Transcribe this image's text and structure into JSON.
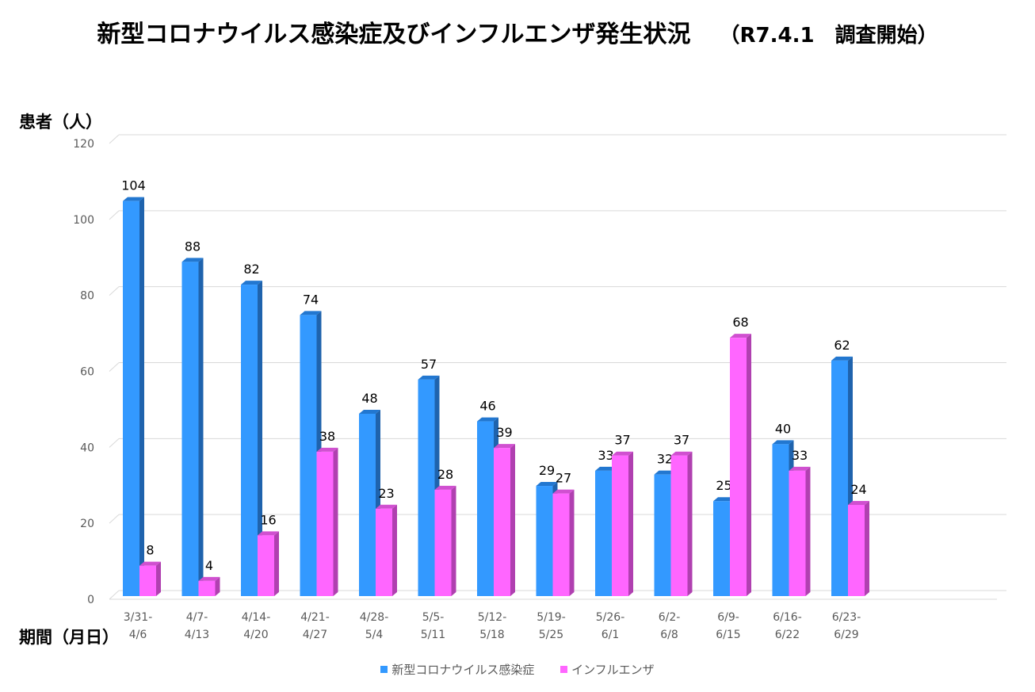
{
  "title": {
    "main": "新型コロナウイルス感染症及びインフルエンザ発生状況",
    "note": "（R7.4.1　調査開始）"
  },
  "axis": {
    "ylabel": "患者（人）",
    "xlabel": "期間（月日）"
  },
  "colors": {
    "covid": "#3399FF",
    "covid_side": "#1F63AD",
    "covid_top": "#2277D0",
    "flu": "#FF66FF",
    "flu_side": "#B040B0",
    "flu_top": "#D050D0",
    "grid": "#D9D9D9"
  },
  "chart_data": {
    "type": "bar",
    "title": "新型コロナウイルス感染症及びインフルエンザ発生状況",
    "xlabel": "期間（月日）",
    "ylabel": "患者（人）",
    "ylim": [
      0,
      120
    ],
    "yticks": [
      0,
      20,
      40,
      60,
      80,
      100,
      120
    ],
    "grid": true,
    "legend_position": "bottom",
    "categories": [
      [
        "3/31-",
        "4/6"
      ],
      [
        "4/7-",
        "4/13"
      ],
      [
        "4/14-",
        "4/20"
      ],
      [
        "4/21-",
        "4/27"
      ],
      [
        "4/28-",
        "5/4"
      ],
      [
        "5/5-",
        "5/11"
      ],
      [
        "5/12-",
        "5/18"
      ],
      [
        "5/19-",
        "5/25"
      ],
      [
        "5/26-",
        "6/1"
      ],
      [
        "6/2-",
        "6/8"
      ],
      [
        "6/9-",
        "6/15"
      ],
      [
        "6/16-",
        "6/22"
      ],
      [
        "6/23-",
        "6/29"
      ]
    ],
    "series": [
      {
        "name": "新型コロナウイルス感染症",
        "values": [
          104,
          88,
          82,
          74,
          48,
          57,
          46,
          29,
          33,
          32,
          25,
          40,
          62
        ]
      },
      {
        "name": "インフルエンザ",
        "values": [
          8,
          4,
          16,
          38,
          23,
          28,
          39,
          27,
          37,
          37,
          68,
          33,
          24
        ]
      }
    ]
  }
}
